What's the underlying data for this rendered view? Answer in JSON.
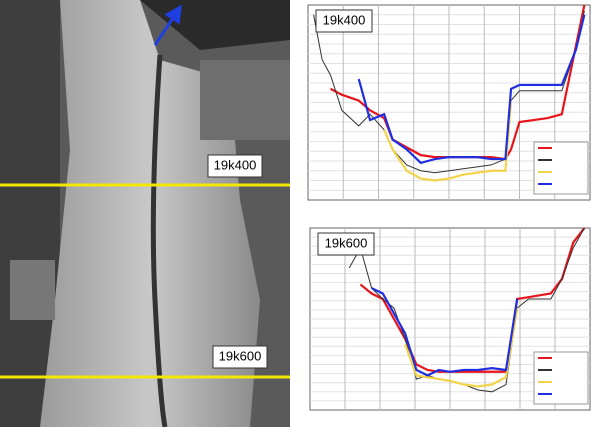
{
  "photo": {
    "labels": [
      "19k400",
      "19k600"
    ]
  },
  "charts": [
    {
      "type": "line",
      "label": "19k400",
      "xlim": [
        0,
        100
      ],
      "ylim": [
        0,
        100
      ],
      "x": [
        2,
        5,
        8,
        12,
        18,
        22,
        27,
        30,
        35,
        40,
        45,
        50,
        55,
        60,
        65,
        70,
        72,
        75,
        80,
        85,
        90,
        95,
        98
      ],
      "series": [
        {
          "color": "#e8141b",
          "values": [
            null,
            null,
            57,
            54,
            51,
            46,
            42,
            31,
            27,
            23,
            22,
            22,
            22,
            22,
            22,
            21,
            26,
            40,
            41,
            42,
            44,
            79,
            100
          ]
        },
        {
          "color": "#333333",
          "values": [
            95,
            72,
            64,
            46,
            38,
            44,
            36,
            26,
            18,
            15,
            14,
            15,
            16,
            17,
            18,
            21,
            51,
            56,
            56,
            56,
            56,
            77,
            97
          ]
        },
        {
          "color": "#f3d34a",
          "values": [
            null,
            null,
            null,
            null,
            null,
            null,
            36,
            26,
            15,
            11,
            10,
            11,
            13,
            14,
            15,
            15,
            51,
            null,
            null,
            null,
            null,
            null,
            null
          ]
        },
        {
          "color": "#1f2fe0",
          "values": [
            null,
            null,
            null,
            null,
            62,
            41,
            44,
            31,
            26,
            19,
            21,
            22,
            22,
            22,
            21,
            21,
            57,
            59,
            59,
            59,
            59,
            77,
            95
          ]
        }
      ]
    },
    {
      "type": "line",
      "label": "19k600",
      "xlim": [
        0,
        100
      ],
      "ylim": [
        0,
        100
      ],
      "x": [
        14,
        18,
        22,
        26,
        30,
        34,
        38,
        42,
        46,
        50,
        55,
        60,
        65,
        70,
        74,
        78,
        82,
        86,
        90,
        94,
        98
      ],
      "series": [
        {
          "color": "#e8141b",
          "values": [
            null,
            69,
            64,
            61,
            50,
            39,
            25,
            22,
            21,
            21,
            21,
            21,
            21,
            21,
            61,
            62,
            63,
            64,
            72,
            92,
            100
          ]
        },
        {
          "color": "#333333",
          "values": [
            78,
            89,
            67,
            61,
            56,
            39,
            17,
            19,
            17,
            16,
            14,
            11,
            10,
            14,
            56,
            61,
            61,
            61,
            72,
            89,
            100
          ]
        },
        {
          "color": "#f3d34a",
          "values": [
            null,
            null,
            null,
            null,
            null,
            36,
            19,
            18,
            17,
            16,
            14,
            13,
            14,
            18,
            56,
            null,
            null,
            null,
            null,
            null,
            null
          ]
        },
        {
          "color": "#1f2fe0",
          "values": [
            null,
            null,
            67,
            64,
            53,
            42,
            22,
            19,
            22,
            21,
            22,
            22,
            23,
            22,
            61,
            null,
            null,
            null,
            null,
            null,
            null
          ]
        }
      ]
    }
  ]
}
